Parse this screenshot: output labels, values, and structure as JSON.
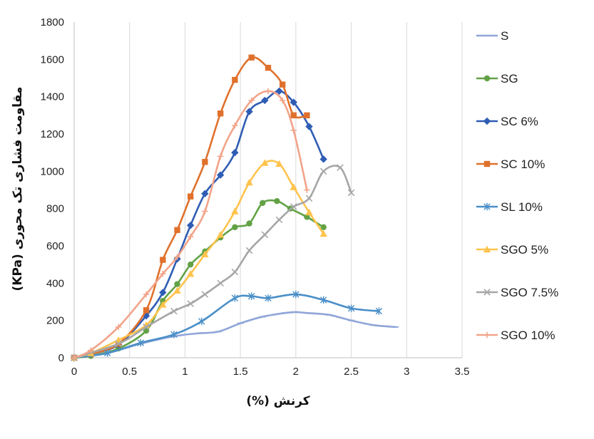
{
  "chart_data": {
    "type": "line",
    "xlabel": "کرنش (%)",
    "ylabel": "مقاومت فشاری تک محوری (KPa)",
    "xlim": [
      0,
      3.5
    ],
    "ylim": [
      0,
      1800
    ],
    "xticks": [
      0,
      0.5,
      1,
      1.5,
      2,
      2.5,
      3,
      3.5
    ],
    "xtick_labels": [
      "0",
      "0.5",
      "1",
      "1.5",
      "2",
      "2.5",
      "3",
      "3.5"
    ],
    "yticks": [
      0,
      200,
      400,
      600,
      800,
      1000,
      1200,
      1400,
      1600,
      1800
    ],
    "ytick_labels": [
      "0",
      "200",
      "400",
      "600",
      "800",
      "1000",
      "1200",
      "1400",
      "1600",
      "1800"
    ],
    "grid": "vertical",
    "legend_position": "right",
    "series": [
      {
        "name": "S",
        "color": "#8FA6D9",
        "marker": "dash",
        "x": [
          0,
          0.3,
          0.6,
          0.9,
          1.1,
          1.3,
          1.5,
          1.7,
          1.9,
          2.0,
          2.1,
          2.3,
          2.5,
          2.7,
          2.9
        ],
        "y": [
          0,
          25,
          75,
          115,
          130,
          140,
          185,
          220,
          240,
          245,
          240,
          230,
          200,
          175,
          165
        ]
      },
      {
        "name": "SG",
        "color": "#62A245",
        "marker": "circle",
        "x": [
          0,
          0.15,
          0.4,
          0.65,
          0.8,
          0.93,
          1.05,
          1.18,
          1.32,
          1.45,
          1.58,
          1.7,
          1.83,
          1.95,
          2.1,
          2.25
        ],
        "y": [
          0,
          10,
          50,
          145,
          305,
          395,
          500,
          570,
          645,
          700,
          720,
          830,
          840,
          800,
          755,
          700
        ]
      },
      {
        "name": "SC 6%",
        "color": "#2F5DB4",
        "marker": "diamond",
        "x": [
          0,
          0.15,
          0.4,
          0.65,
          0.8,
          0.93,
          1.05,
          1.18,
          1.32,
          1.45,
          1.58,
          1.72,
          1.85,
          1.98,
          2.12,
          2.25
        ],
        "y": [
          0,
          20,
          70,
          225,
          350,
          530,
          710,
          880,
          980,
          1100,
          1320,
          1380,
          1430,
          1370,
          1240,
          1065
        ]
      },
      {
        "name": "SC 10%",
        "color": "#E0712C",
        "marker": "square",
        "x": [
          0,
          0.15,
          0.4,
          0.65,
          0.8,
          0.93,
          1.05,
          1.18,
          1.32,
          1.45,
          1.6,
          1.75,
          1.88,
          1.98,
          2.1
        ],
        "y": [
          0,
          20,
          75,
          255,
          525,
          685,
          865,
          1050,
          1310,
          1490,
          1610,
          1555,
          1465,
          1300,
          1300
        ]
      },
      {
        "name": "SL 10%",
        "color": "#4A8FC8",
        "marker": "star",
        "x": [
          0,
          0.3,
          0.6,
          0.9,
          1.15,
          1.45,
          1.6,
          1.75,
          2.0,
          2.25,
          2.5,
          2.75
        ],
        "y": [
          0,
          25,
          80,
          125,
          195,
          320,
          330,
          320,
          340,
          310,
          265,
          250
        ]
      },
      {
        "name": "SGO 5%",
        "color": "#FFC34D",
        "marker": "triangle",
        "x": [
          0,
          0.15,
          0.4,
          0.65,
          0.8,
          0.93,
          1.05,
          1.18,
          1.32,
          1.45,
          1.58,
          1.72,
          1.85,
          1.98,
          2.12,
          2.25
        ],
        "y": [
          0,
          25,
          95,
          175,
          285,
          360,
          450,
          555,
          660,
          785,
          940,
          1045,
          1040,
          915,
          780,
          665
        ]
      },
      {
        "name": "SGO 7.5%",
        "color": "#A6A6A6",
        "marker": "x",
        "x": [
          0,
          0.4,
          0.65,
          0.9,
          1.05,
          1.18,
          1.32,
          1.45,
          1.58,
          1.72,
          1.85,
          1.98,
          2.12,
          2.25,
          2.4,
          2.5
        ],
        "y": [
          0,
          75,
          165,
          250,
          290,
          340,
          400,
          460,
          575,
          660,
          740,
          810,
          855,
          1000,
          1020,
          885
        ],
        "extra_note": ""
      },
      {
        "name": "SGO 10%",
        "color": "#F2A48A",
        "marker": "plus",
        "x": [
          0,
          0.15,
          0.4,
          0.65,
          0.8,
          0.93,
          1.05,
          1.18,
          1.32,
          1.45,
          1.6,
          1.75,
          1.88,
          1.98,
          2.1
        ],
        "y": [
          0,
          40,
          165,
          340,
          450,
          540,
          650,
          785,
          1080,
          1245,
          1380,
          1430,
          1380,
          1220,
          900
        ]
      }
    ]
  }
}
